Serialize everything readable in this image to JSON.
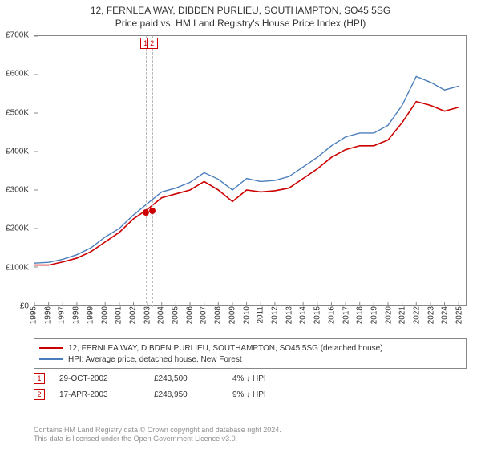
{
  "title_line1": "12, FERNLEA WAY, DIBDEN PURLIEU, SOUTHAMPTON, SO45 5SG",
  "title_line2": "Price paid vs. HM Land Registry's House Price Index (HPI)",
  "chart": {
    "type": "line",
    "background_color": "#ffffff",
    "border_color": "#888888",
    "x_years": [
      1995,
      1996,
      1997,
      1998,
      1999,
      2000,
      2001,
      2002,
      2003,
      2004,
      2005,
      2006,
      2007,
      2008,
      2009,
      2010,
      2011,
      2012,
      2013,
      2014,
      2015,
      2016,
      2017,
      2018,
      2019,
      2020,
      2021,
      2022,
      2023,
      2024,
      2025
    ],
    "xlim": [
      1995,
      2025.5
    ],
    "y_ticks": [
      0,
      100000,
      200000,
      300000,
      400000,
      500000,
      600000,
      700000
    ],
    "y_labels": [
      "£0",
      "£100K",
      "£200K",
      "£300K",
      "£400K",
      "£500K",
      "£600K",
      "£700K"
    ],
    "ylim": [
      0,
      700000
    ],
    "tick_fontsize": 10,
    "series": [
      {
        "name": "red",
        "color": "#cc0000",
        "line_width": 1.6,
        "label": "12, FERNLEA WAY, DIBDEN PURLIEU, SOUTHAMPTON, SO45 5SG (detached house)",
        "points": [
          [
            1995,
            105000
          ],
          [
            1996,
            105000
          ],
          [
            1997,
            113000
          ],
          [
            1998,
            123000
          ],
          [
            1999,
            140000
          ],
          [
            2000,
            165000
          ],
          [
            2001,
            190000
          ],
          [
            2002,
            225000
          ],
          [
            2003,
            250000
          ],
          [
            2004,
            280000
          ],
          [
            2005,
            290000
          ],
          [
            2006,
            300000
          ],
          [
            2007,
            322000
          ],
          [
            2008,
            300000
          ],
          [
            2009,
            270000
          ],
          [
            2010,
            300000
          ],
          [
            2011,
            295000
          ],
          [
            2012,
            298000
          ],
          [
            2013,
            305000
          ],
          [
            2014,
            330000
          ],
          [
            2015,
            355000
          ],
          [
            2016,
            385000
          ],
          [
            2017,
            405000
          ],
          [
            2018,
            415000
          ],
          [
            2019,
            415000
          ],
          [
            2020,
            430000
          ],
          [
            2021,
            475000
          ],
          [
            2022,
            530000
          ],
          [
            2023,
            520000
          ],
          [
            2024,
            505000
          ],
          [
            2025,
            515000
          ]
        ]
      },
      {
        "name": "blue",
        "color": "#4a7ebb",
        "line_width": 1.4,
        "label": "HPI: Average price, detached house, New Forest",
        "points": [
          [
            1995,
            110000
          ],
          [
            1996,
            112000
          ],
          [
            1997,
            120000
          ],
          [
            1998,
            132000
          ],
          [
            1999,
            150000
          ],
          [
            2000,
            178000
          ],
          [
            2001,
            200000
          ],
          [
            2002,
            235000
          ],
          [
            2003,
            265000
          ],
          [
            2004,
            295000
          ],
          [
            2005,
            305000
          ],
          [
            2006,
            320000
          ],
          [
            2007,
            345000
          ],
          [
            2008,
            328000
          ],
          [
            2009,
            300000
          ],
          [
            2010,
            330000
          ],
          [
            2011,
            322000
          ],
          [
            2012,
            325000
          ],
          [
            2013,
            335000
          ],
          [
            2014,
            360000
          ],
          [
            2015,
            385000
          ],
          [
            2016,
            415000
          ],
          [
            2017,
            438000
          ],
          [
            2018,
            448000
          ],
          [
            2019,
            448000
          ],
          [
            2020,
            468000
          ],
          [
            2021,
            520000
          ],
          [
            2022,
            595000
          ],
          [
            2023,
            580000
          ],
          [
            2024,
            560000
          ],
          [
            2025,
            570000
          ]
        ]
      }
    ],
    "markers": [
      {
        "n": "1",
        "x": 2002.83,
        "y": 243500
      },
      {
        "n": "2",
        "x": 2003.29,
        "y": 248950
      }
    ],
    "marker_box_color": "#cc0000",
    "marker_dot_color": "#cc0000",
    "marker_vline_color": "#bbbbbb"
  },
  "legend": {
    "border_color": "#888888",
    "fontsize": 10
  },
  "events": [
    {
      "n": "1",
      "date": "29-OCT-2002",
      "price": "£243,500",
      "delta": "4% ↓ HPI"
    },
    {
      "n": "2",
      "date": "17-APR-2003",
      "price": "£248,950",
      "delta": "9% ↓ HPI"
    }
  ],
  "footer_line1": "Contains HM Land Registry data © Crown copyright and database right 2024.",
  "footer_line2": "This data is licensed under the Open Government Licence v3.0.",
  "footer_color": "#909090"
}
